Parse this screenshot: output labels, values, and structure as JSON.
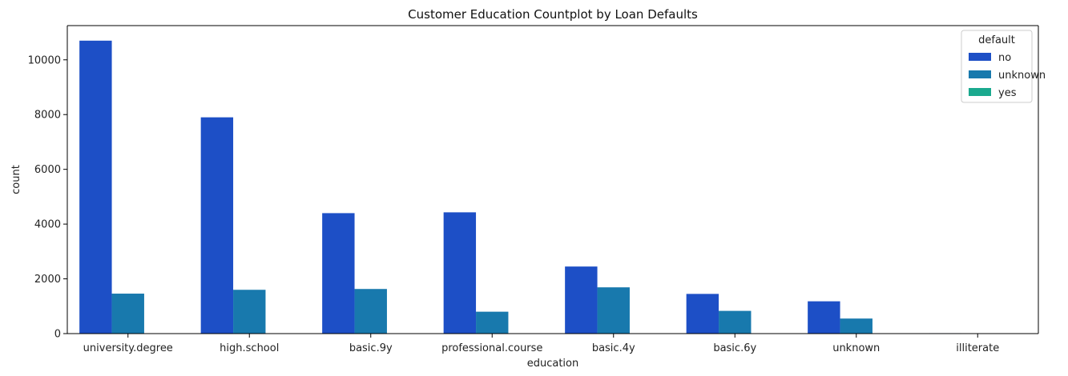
{
  "chart_data": {
    "type": "bar",
    "title": "Customer Education Countplot by Loan Defaults",
    "xlabel": "education",
    "ylabel": "count",
    "categories": [
      "university.degree",
      "high.school",
      "basic.9y",
      "professional.course",
      "basic.4y",
      "basic.6y",
      "unknown",
      "illiterate"
    ],
    "series": [
      {
        "name": "no",
        "color": "#1d4fc6",
        "values": [
          10700,
          7900,
          4400,
          4430,
          2450,
          1450,
          1180,
          15
        ]
      },
      {
        "name": "unknown",
        "color": "#1879ad",
        "values": [
          1460,
          1600,
          1630,
          800,
          1690,
          830,
          550,
          4
        ]
      },
      {
        "name": "yes",
        "color": "#1aa98e",
        "values": [
          0,
          0,
          0,
          0,
          0,
          0,
          0,
          0
        ]
      }
    ],
    "ylim": [
      0,
      11250
    ],
    "yticks": [
      0,
      2000,
      4000,
      6000,
      8000,
      10000
    ],
    "grid": false,
    "legend": {
      "title": "default",
      "placement": "top-right"
    }
  }
}
